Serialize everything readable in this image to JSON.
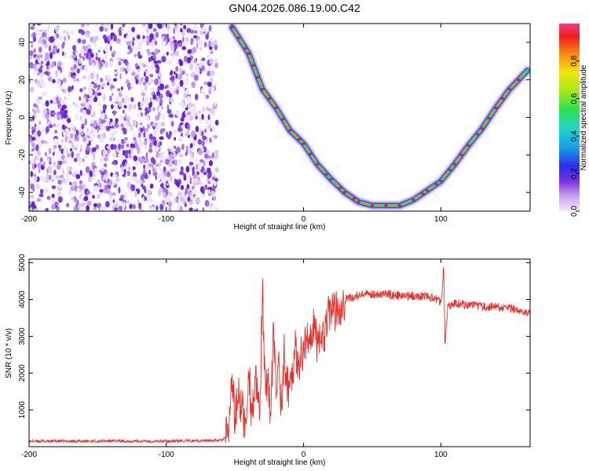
{
  "title": "GN04.2026.086.19.00.C42",
  "chart_data": [
    {
      "type": "heatmap",
      "xlabel": "Height of straight line (km)",
      "ylabel": "Frequency (Hz)",
      "xlim": [
        -200,
        165
      ],
      "ylim": [
        -50,
        50
      ],
      "xticks": [
        "-200",
        "-100",
        "0",
        "100"
      ],
      "yticks": [
        "-40",
        "-20",
        "0",
        "20",
        "40"
      ],
      "colorbar": {
        "label": "Normalized spectral amplitude",
        "range": [
          0,
          1
        ],
        "ticks": [
          "0.0",
          "0.2",
          "0.4",
          "0.6",
          "0.8"
        ]
      },
      "noise_region_x": [
        -200,
        -63
      ],
      "signal_track": {
        "x": [
          -52,
          -40,
          -30,
          -20,
          -10,
          0,
          10,
          20,
          30,
          40,
          50,
          60,
          70,
          80,
          90,
          100,
          110,
          120,
          130,
          140,
          150,
          163
        ],
        "freq_hz": [
          48,
          34,
          15,
          5,
          -7,
          -14,
          -25,
          -33,
          -40,
          -45,
          -47,
          -47,
          -47,
          -44,
          -39,
          -34,
          -25,
          -15,
          -6,
          5,
          15,
          25
        ]
      },
      "grid": false
    },
    {
      "type": "line",
      "xlabel": "Height of straight line (km)",
      "ylabel": "SNR (10 * v/v)",
      "xlim": [
        -200,
        165
      ],
      "ylim": [
        0,
        5100
      ],
      "xticks": [
        "-200",
        "-100",
        "0",
        "100"
      ],
      "yticks": [
        "1000",
        "2000",
        "3000",
        "4000",
        "5000"
      ],
      "series": [
        {
          "color": "#e8302a",
          "x": [
            -200,
            -180,
            -160,
            -140,
            -120,
            -100,
            -80,
            -60,
            -55,
            -52,
            -50,
            -48,
            -45,
            -42,
            -40,
            -38,
            -35,
            -32,
            -30,
            -28,
            -26,
            -24,
            -22,
            -20,
            -18,
            -16,
            -14,
            -12,
            -10,
            -8,
            -6,
            -4,
            -2,
            0,
            2,
            4,
            6,
            8,
            10,
            12,
            14,
            16,
            18,
            20,
            22,
            25,
            28,
            30,
            35,
            40,
            50,
            60,
            70,
            80,
            90,
            100,
            101,
            102,
            103,
            105,
            110,
            120,
            130,
            140,
            150,
            160,
            165
          ],
          "values": [
            150,
            150,
            150,
            155,
            150,
            150,
            160,
            170,
            300,
            1900,
            700,
            1400,
            1100,
            400,
            2300,
            900,
            1700,
            800,
            4200,
            1300,
            2100,
            700,
            3100,
            1500,
            2300,
            1000,
            2600,
            1600,
            1700,
            2200,
            2600,
            2400,
            2400,
            2600,
            2900,
            3200,
            2500,
            3700,
            2700,
            3300,
            2900,
            3300,
            3900,
            3500,
            3650,
            3800,
            3900,
            4000,
            4050,
            4100,
            4150,
            4150,
            4100,
            4100,
            4100,
            3950,
            4200,
            5100,
            2800,
            3800,
            3900,
            3850,
            3800,
            3800,
            3750,
            3700,
            3650
          ]
        }
      ],
      "grid": false
    }
  ]
}
